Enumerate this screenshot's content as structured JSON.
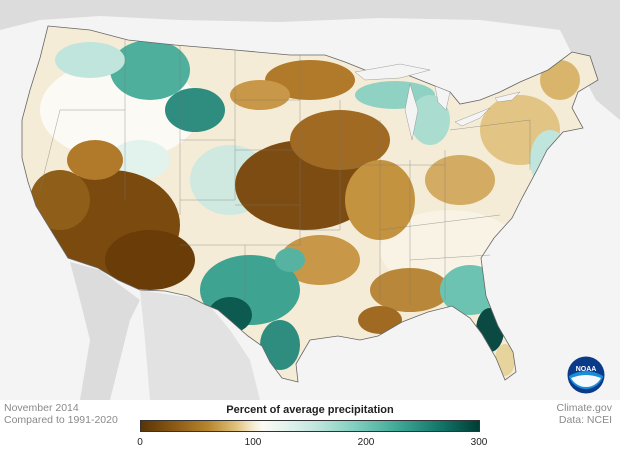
{
  "map": {
    "footer_left": [
      "November 2014",
      "Compared to 1991-2020"
    ],
    "footer_right": [
      "Climate.gov",
      "Data: NCEI"
    ],
    "legend": {
      "title": "Percent of average precipitation",
      "ticks": [
        "0",
        "100",
        "200",
        "300"
      ],
      "range": [
        0,
        300
      ],
      "colors": [
        "#5a3405",
        "#b8862e",
        "#f6ebcf",
        "#fbfaf4",
        "#82cfc0",
        "#14786b",
        "#003d35"
      ]
    },
    "logo_text": "NOAA",
    "region": "Contiguous United States"
  }
}
